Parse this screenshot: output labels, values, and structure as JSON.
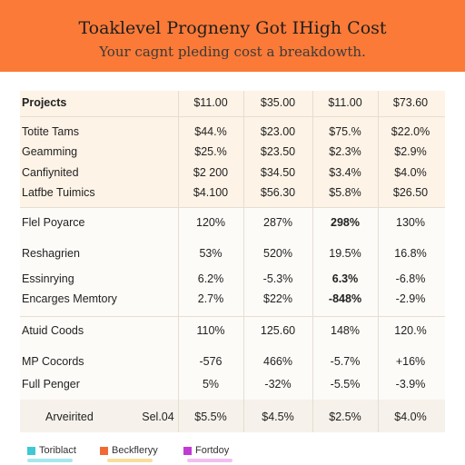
{
  "header": {
    "title": "Toaklevel Progneny Got IHigh Cost",
    "subtitle": "Your cagnt pleding cost a breakdowth."
  },
  "table": {
    "header": {
      "label": "Projects",
      "values": [
        "$11.00",
        "$35.00",
        "$11.00",
        "$73.60"
      ]
    },
    "rows": [
      {
        "label": "Totite Tams",
        "values": [
          "$44.%",
          "$23.00",
          "$75.%",
          "$22.0%"
        ]
      },
      {
        "label": "Geamming",
        "values": [
          "$25.%",
          "$23.50",
          "$2.3%",
          "$2.9%"
        ]
      },
      {
        "label": "Canfiynited",
        "values": [
          "$2 200",
          "$34.50",
          "$3.4%",
          "$4.0%"
        ]
      },
      {
        "label": "Latfbe Tuimics",
        "values": [
          "$4.100",
          "$56.30",
          "$5.8%",
          "$26.50"
        ]
      },
      {
        "label": "Flel Poyarce",
        "values": [
          "120%",
          "287%",
          "298%",
          "130%"
        ]
      },
      {
        "label": "Reshagrien",
        "values": [
          "53%",
          "520%",
          "19.5%",
          "16.8%"
        ]
      },
      {
        "label": "Essinrying",
        "values": [
          "6.2%",
          "-5.3%",
          "6.3%",
          "-6.8%"
        ]
      },
      {
        "label": "Encarges Memtory",
        "values": [
          "2.7%",
          "$22%",
          "-848%",
          "-2.9%"
        ]
      },
      {
        "label": "Atuid Coods",
        "values": [
          "110%",
          "125.60",
          "148%",
          "120.%"
        ]
      },
      {
        "label": "MP Cocords",
        "values": [
          "-576",
          "466%",
          "-5.7%",
          "+16%"
        ]
      },
      {
        "label": "Full Penger",
        "values": [
          "5%",
          "-32%",
          "-5.5%",
          "-3.9%"
        ]
      }
    ],
    "footer": {
      "label": "Arveirited",
      "extra": "Sel.04",
      "values": [
        "$5.5%",
        "$4.5%",
        "$2.5%",
        "$4.0%"
      ]
    }
  },
  "legend": {
    "items": [
      {
        "label": "Toriblact",
        "color": "#3ec8d6"
      },
      {
        "label": "Beckfleryy",
        "color": "#f26a33"
      },
      {
        "label": "Fortdoy",
        "color": "#c23ad6"
      }
    ],
    "faint_colors": [
      "#5fd3e0",
      "#f2c24a",
      "#e58ae6"
    ]
  }
}
